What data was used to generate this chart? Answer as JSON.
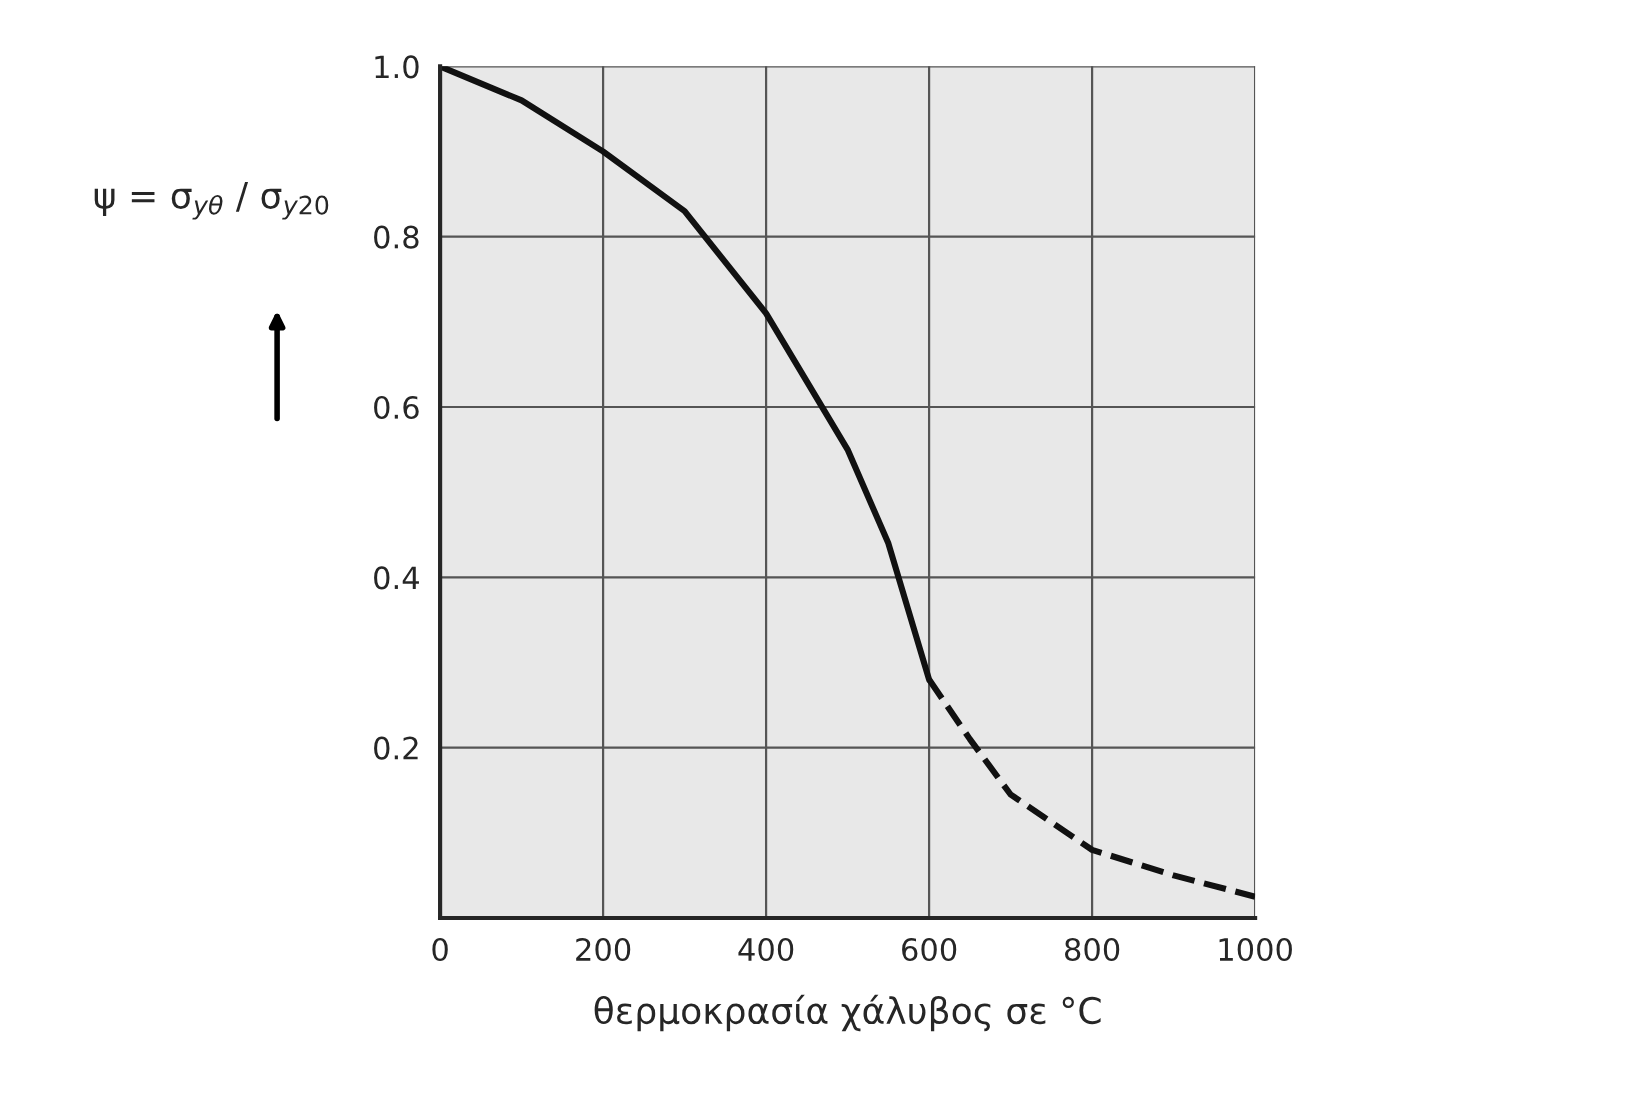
{
  "chart_data": {
    "type": "line",
    "xlabel": "θερμοκρασία χάλυβος σε °C",
    "ylabel": "ψ = σ$_{yθ}$ / σ$_{y20}$",
    "series": [
      {
        "color": "#111111",
        "line_style": "solid",
        "x": [
          0,
          100,
          200,
          300,
          400,
          500,
          550,
          600
        ],
        "values": [
          1.0,
          0.96,
          0.9,
          0.83,
          0.71,
          0.55,
          0.44,
          0.28
        ]
      },
      {
        "color": "#111111",
        "line_style": "dashed",
        "x": [
          600,
          650,
          700,
          800,
          900,
          1000
        ],
        "values": [
          0.28,
          0.21,
          0.145,
          0.08,
          0.05,
          0.025
        ]
      }
    ],
    "xlim": [
      0,
      1000
    ],
    "ylim": [
      0,
      1.0
    ],
    "xticks": [
      0,
      200,
      400,
      600,
      800,
      1000
    ],
    "yticks": [
      {
        "value": 0.2,
        "label": "0.2"
      },
      {
        "value": 0.4,
        "label": "0.4"
      },
      {
        "value": 0.6,
        "label": "0.6"
      },
      {
        "value": 0.8,
        "label": "0.8"
      },
      {
        "value": 1.0,
        "label": "1.0"
      }
    ],
    "grid": true,
    "marker": "none"
  }
}
